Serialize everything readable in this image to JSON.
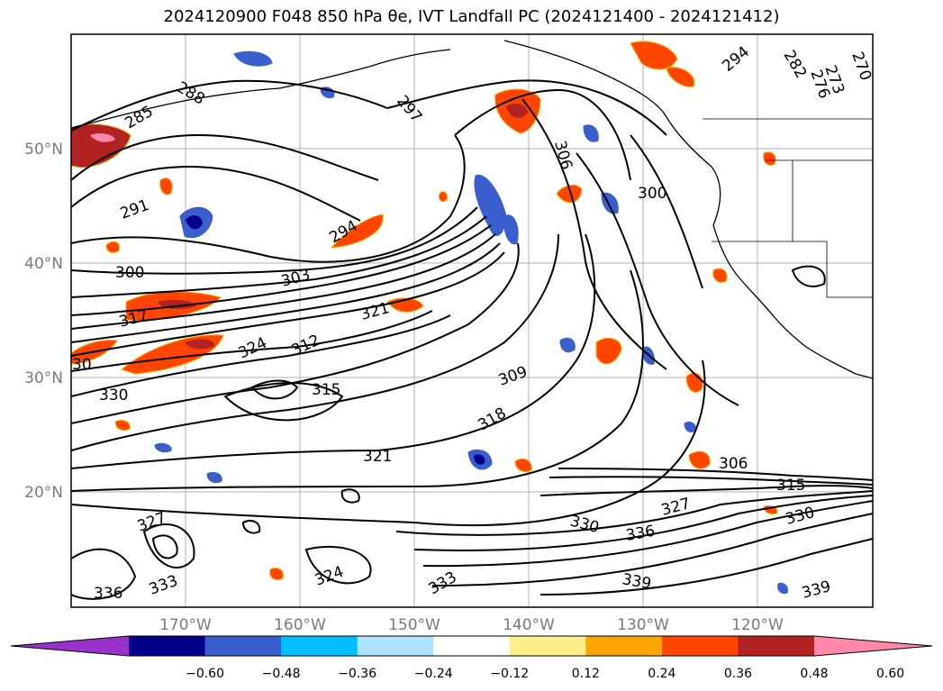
{
  "title": "2024120900 F048 850 hPa θe, IVT Landfall PC (2024121400 - 2024121412)",
  "lat_labels": [
    "50°N",
    "40°N",
    "30°N",
    "20°N"
  ],
  "lon_labels": [
    "170°W",
    "160°W",
    "150°W",
    "140°W",
    "130°W",
    "120°W"
  ],
  "colorbar": {
    "ticks": [
      "−0.60",
      "−0.48",
      "−0.36",
      "−0.24",
      "−0.12",
      "0.12",
      "0.24",
      "0.36",
      "0.48",
      "0.60"
    ],
    "colors": [
      "#9932cc",
      "#00008b",
      "#3a5fcd",
      "#00bfff",
      "#b0e2ff",
      "#ffffff",
      "#fff08c",
      "#ffa500",
      "#ff4500",
      "#b22222",
      "#ff88aa"
    ]
  },
  "contour_labels": {
    "c285": "285",
    "c288": "288",
    "c291": "291",
    "c297": "297",
    "c306a": "306",
    "c300a": "300",
    "c303": "303",
    "c300b": "300",
    "c294": "294",
    "c317": "317",
    "c321a": "321",
    "c324": "324",
    "c312": "312",
    "c315": "315",
    "c309": "309",
    "c330a": "330",
    "c318": "318",
    "c321b": "321",
    "c330b": "330",
    "c336a": "336",
    "c327a": "327",
    "c306b": "306",
    "c315b": "315",
    "c330c": "330",
    "c339a": "339",
    "c339b": "339",
    "c333a": "333",
    "c324b": "324",
    "c333b": "333",
    "c336b": "336",
    "c327b": "327",
    "c330d": "30",
    "c270": "270",
    "c273": "273",
    "c276": "276",
    "c282": "282",
    "c294b": "294"
  },
  "colors": {
    "contour": "#000000",
    "coast": "#000000",
    "grid": "#b0b0b0"
  }
}
